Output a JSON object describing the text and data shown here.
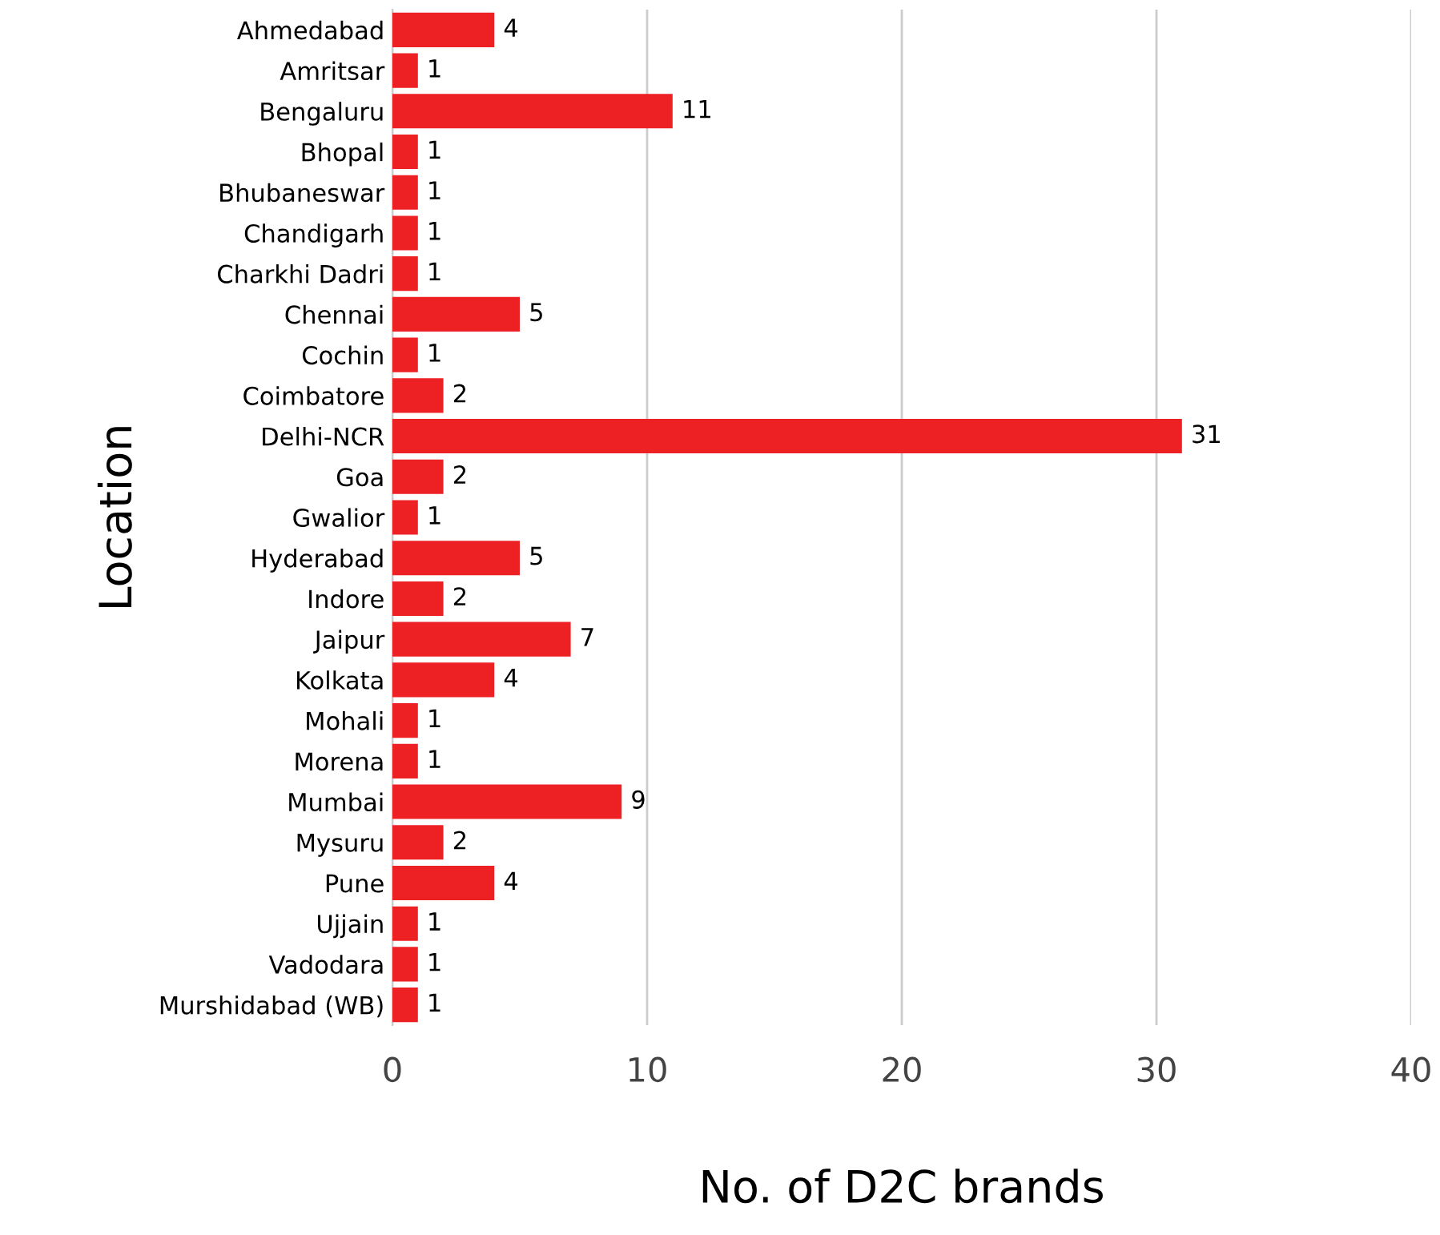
{
  "chart_data": {
    "type": "bar",
    "orientation": "horizontal",
    "xlabel": "No. of D2C brands",
    "ylabel": "Location",
    "categories": [
      "Ahmedabad",
      "Amritsar",
      "Bengaluru",
      "Bhopal",
      "Bhubaneswar",
      "Chandigarh",
      "Charkhi Dadri",
      "Chennai",
      "Cochin",
      "Coimbatore",
      "Delhi-NCR",
      "Goa",
      "Gwalior",
      "Hyderabad",
      "Indore",
      "Jaipur",
      "Kolkata",
      "Mohali",
      "Morena",
      "Mumbai",
      "Mysuru",
      "Pune",
      "Ujjain",
      "Vadodara",
      "Murshidabad (WB)"
    ],
    "values": [
      4,
      1,
      11,
      1,
      1,
      1,
      1,
      5,
      1,
      2,
      31,
      2,
      1,
      5,
      2,
      7,
      4,
      1,
      1,
      9,
      2,
      4,
      1,
      1,
      1
    ],
    "color": "#ed2024",
    "xlim": [
      0,
      40
    ],
    "xticks": [
      0,
      10,
      20,
      30,
      40
    ],
    "grid": "x",
    "data_labels": true,
    "legend": false
  }
}
